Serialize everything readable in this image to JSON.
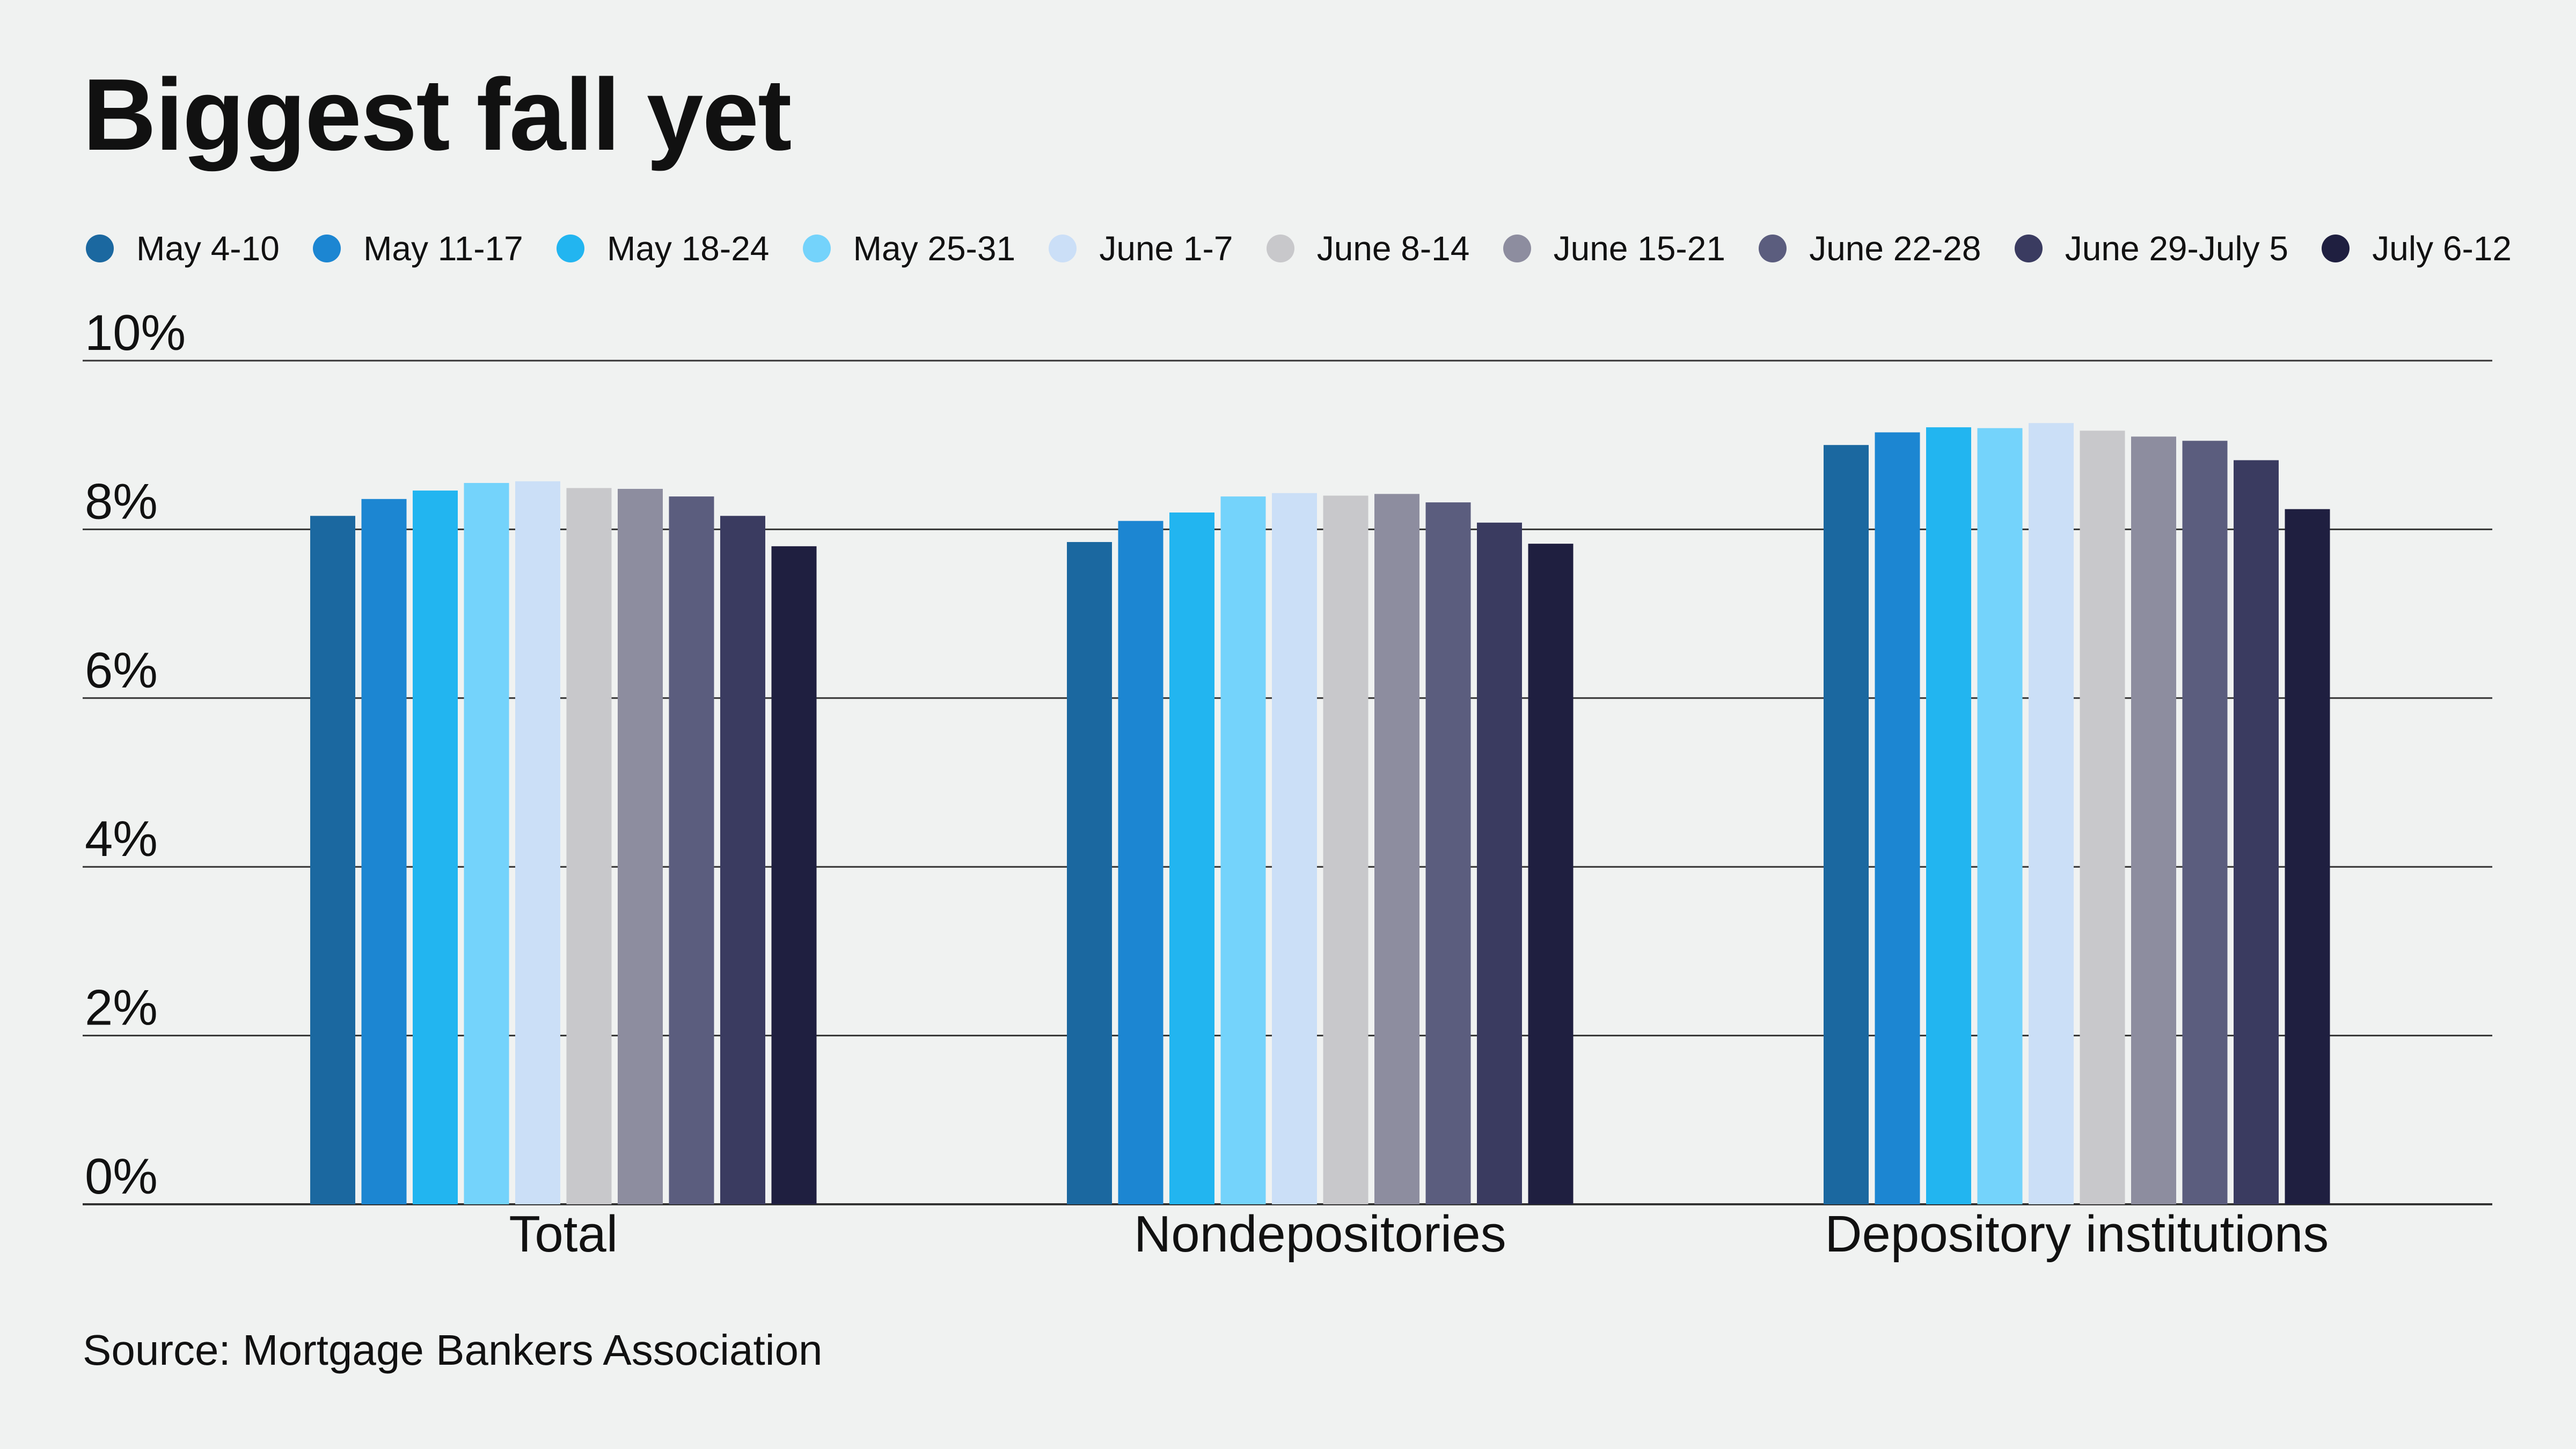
{
  "chart_data": {
    "type": "bar",
    "title": "Biggest fall yet",
    "source": "Source: Mortgage Bankers Association",
    "categories": [
      "Total",
      "Nondepositories",
      "Depository institutions"
    ],
    "ylim": [
      0,
      10
    ],
    "yticks": [
      0,
      2,
      4,
      6,
      8,
      10
    ],
    "ytick_labels": [
      "0%",
      "2%",
      "4%",
      "6%",
      "8%",
      "10%"
    ],
    "grid": true,
    "legend_position": "top",
    "series": [
      {
        "name": "May 4-10",
        "color": "#1b68a0",
        "values": [
          8.16,
          7.85,
          9.0
        ]
      },
      {
        "name": "May 11-17",
        "color": "#1c86d2",
        "values": [
          8.36,
          8.1,
          9.15
        ]
      },
      {
        "name": "May 18-24",
        "color": "#22b5f0",
        "values": [
          8.46,
          8.2,
          9.21
        ]
      },
      {
        "name": "May 25-31",
        "color": "#74d3fb",
        "values": [
          8.55,
          8.39,
          9.2
        ]
      },
      {
        "name": "June 1-7",
        "color": "#cbdff7",
        "values": [
          8.57,
          8.43,
          9.26
        ]
      },
      {
        "name": "June 8-14",
        "color": "#c8c8cb",
        "values": [
          8.49,
          8.4,
          9.17
        ]
      },
      {
        "name": "June 15-21",
        "color": "#8d8d9f",
        "values": [
          8.48,
          8.42,
          9.1
        ]
      },
      {
        "name": "June 22-28",
        "color": "#5b5d7e",
        "values": [
          8.39,
          8.32,
          9.05
        ]
      },
      {
        "name": "June 29-July 5",
        "color": "#3a3b60",
        "values": [
          8.16,
          8.08,
          8.82
        ]
      },
      {
        "name": "July 6-12",
        "color": "#1f1f40",
        "values": [
          7.8,
          7.83,
          8.24
        ]
      }
    ]
  }
}
